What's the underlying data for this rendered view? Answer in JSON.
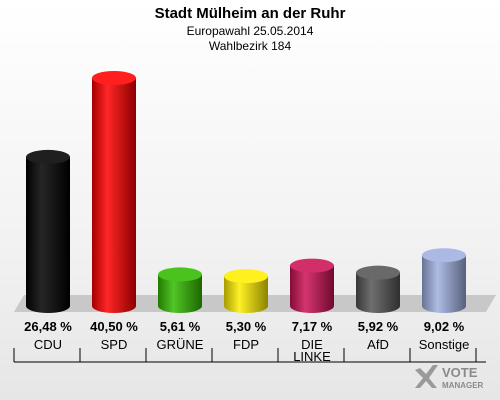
{
  "header": {
    "title": "Stadt Mülheim an der Ruhr",
    "subtitle": "Europawahl 25.05.2014",
    "district": "Wahlbezirk 184"
  },
  "logo": {
    "word1": "VOTE",
    "word2": "MANAGER",
    "icon": "checkmark-x-icon"
  },
  "chart_data": {
    "type": "bar",
    "title": "Stadt Mülheim an der Ruhr",
    "categories": [
      "CDU",
      "SPD",
      "GRÜNE",
      "FDP",
      "DIE LINKE",
      "AfD",
      "Sonstige"
    ],
    "category_lines": [
      [
        "CDU"
      ],
      [
        "SPD"
      ],
      [
        "GRÜNE"
      ],
      [
        "FDP"
      ],
      [
        "DIE",
        "LINKE"
      ],
      [
        "AfD"
      ],
      [
        "Sonstige"
      ]
    ],
    "values": [
      26.48,
      40.5,
      5.61,
      5.3,
      7.17,
      5.92,
      9.02
    ],
    "value_labels": [
      "26,48 %",
      "40,50 %",
      "5,61 %",
      "5,30 %",
      "7,17 %",
      "5,92 %",
      "9,02 %"
    ],
    "colors": [
      "#000000",
      "#ff0000",
      "#33bb00",
      "#ffee00",
      "#cc1155",
      "#555555",
      "#a0b0e0"
    ],
    "grid": false,
    "legend": "none"
  }
}
